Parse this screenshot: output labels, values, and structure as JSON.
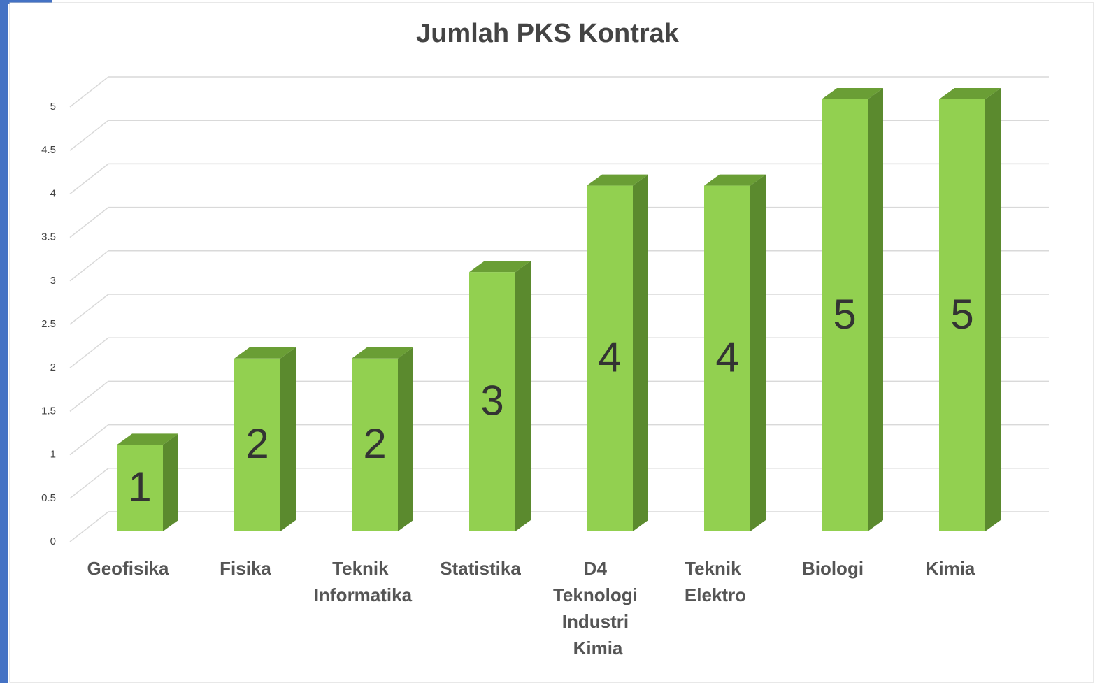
{
  "chart_data": {
    "type": "bar3d",
    "title": "Jumlah PKS Kontrak",
    "categories": [
      "Geofisika",
      "Fisika",
      "Teknik Informatika",
      "Statistika",
      "D4 Teknologi Industri Kimia",
      "Teknik Elektro",
      "Biologi",
      "Kimia"
    ],
    "values": [
      1,
      2,
      2,
      3,
      4,
      4,
      5,
      5
    ],
    "color": "#92d050",
    "ylim": [
      0,
      5
    ],
    "yticks": [
      0,
      0.5,
      1,
      1.5,
      2,
      2.5,
      3,
      3.5,
      4,
      4.5,
      5
    ],
    "grid": true
  }
}
